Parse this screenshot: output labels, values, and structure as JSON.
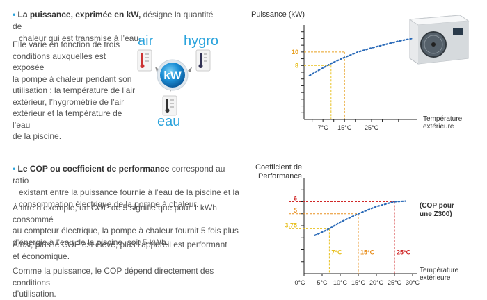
{
  "section1": {
    "bullet": "•",
    "title_bold": "La puissance, exprimée en kW,",
    "title_rest": " désigne la quantité de",
    "title_line2": "chaleur qui est transmise à l’eau.",
    "para_lines": [
      "Elle varie en fonction de trois",
      "conditions auxquelles est exposée",
      "la pompe à chaleur pendant son",
      "utilisation : la température de l’air",
      "extérieur, l’hygrométrie de l’air",
      "extérieur et la température de l’eau",
      "de la piscine."
    ]
  },
  "diagram": {
    "air_label": "air",
    "hygro_label": "hygro",
    "eau_label": "eau",
    "center_label": "kW",
    "accent_color": "#2aa3dc"
  },
  "section2": {
    "bullet": "•",
    "title_bold": "Le COP ou coefficient de performance",
    "title_rest": " correspond au ratio",
    "title_lines": [
      "existant entre la puissance fournie à l’eau de la piscine et la",
      "consommation électrique de la pompe à chaleur."
    ],
    "para1": [
      "À titre d’exemple, un COP de 5 signifie que pour 1 kWh consommé",
      "au compteur électrique, la pompe à chaleur fournit 5 fois plus",
      "d’énergie à l’eau de la piscine, soit 5 kWh."
    ],
    "para2": [
      "Ainsi, plus le COP est élevé, plus l’appareil est performant",
      "et économique."
    ],
    "para3": [
      "Comme la puissance, le COP dépend directement des conditions",
      "d’utilisation."
    ]
  },
  "chart_data": [
    {
      "type": "line",
      "ylabel": "Puissance (kW)",
      "xlabel_lines": [
        "Température",
        "extérieure"
      ],
      "x_ticks": [
        "7°C",
        "15°C",
        "25°C"
      ],
      "highlight_y": [
        {
          "label": "10",
          "color": "#e8a020"
        },
        {
          "label": "8",
          "color": "#e8c020"
        }
      ],
      "series": [
        {
          "x": [
            2,
            5,
            10,
            15,
            20,
            25,
            30,
            35,
            40
          ],
          "y": [
            6.5,
            7.2,
            8.3,
            9.2,
            10.0,
            10.6,
            11.1,
            11.6,
            12.0
          ]
        }
      ],
      "line_color": "#2a6ab8"
    },
    {
      "type": "line",
      "ylabel_lines": [
        "Coefficient de",
        "Performance"
      ],
      "xlabel_lines": [
        "Température",
        "extérieure"
      ],
      "x_ticks": [
        "0°C",
        "5°C",
        "10°C",
        "15°C",
        "20°C",
        "25°C",
        "30°C"
      ],
      "annotation_lines": [
        "(COP pour",
        "une Z300)"
      ],
      "highlight_y": [
        {
          "label": "6",
          "color": "#d02828"
        },
        {
          "label": "5",
          "color": "#e89020"
        },
        {
          "label": "3,75",
          "color": "#e8c020"
        }
      ],
      "highlight_x": [
        {
          "label": "7°C",
          "color": "#e8c020"
        },
        {
          "label": "15°C",
          "color": "#e89020"
        },
        {
          "label": "25°C",
          "color": "#d02828"
        }
      ],
      "series": [
        {
          "x": [
            3,
            7,
            10,
            15,
            20,
            25,
            28
          ],
          "y": [
            3.2,
            3.75,
            4.3,
            5.0,
            5.6,
            6.0,
            6.05
          ]
        }
      ],
      "line_color": "#2a6ab8"
    }
  ]
}
